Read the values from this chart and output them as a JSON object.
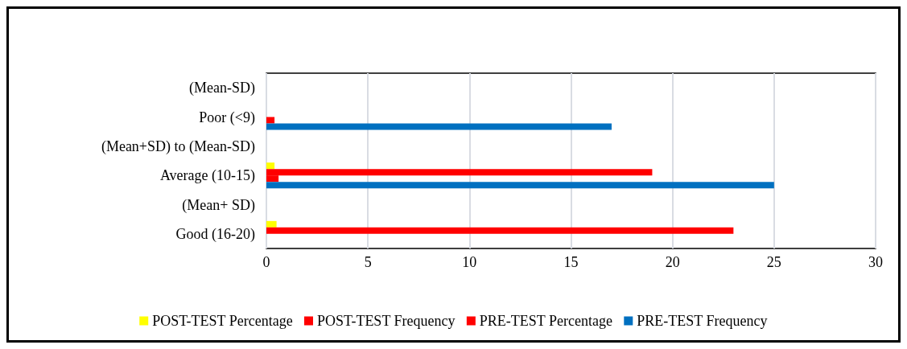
{
  "chart_data": {
    "type": "bar",
    "orientation": "horizontal",
    "categories": [
      "(Mean-SD)",
      "Poor (<9)",
      "(Mean+SD) to (Mean-SD)",
      "Average (10-15)",
      "(Mean+ SD)",
      "Good (16-20)"
    ],
    "series": [
      {
        "name": "POST-TEST Percentage",
        "color": "#ffff00",
        "values": [
          null,
          null,
          null,
          0.4,
          null,
          0.5
        ]
      },
      {
        "name": "POST-TEST Frequency",
        "color": "#ff0000",
        "values": [
          null,
          null,
          null,
          19,
          null,
          23
        ]
      },
      {
        "name": "PRE-TEST Percentage",
        "color": "#ff0000",
        "values": [
          null,
          0.4,
          null,
          0.6,
          null,
          null
        ]
      },
      {
        "name": "PRE-TEST Frequency",
        "color": "#0070c0",
        "values": [
          null,
          17,
          null,
          25,
          null,
          null
        ]
      }
    ],
    "xlim": [
      0,
      30
    ],
    "xticks": [
      0,
      5,
      10,
      15,
      20,
      25,
      30
    ],
    "grid": "x",
    "legend": "bottom"
  }
}
